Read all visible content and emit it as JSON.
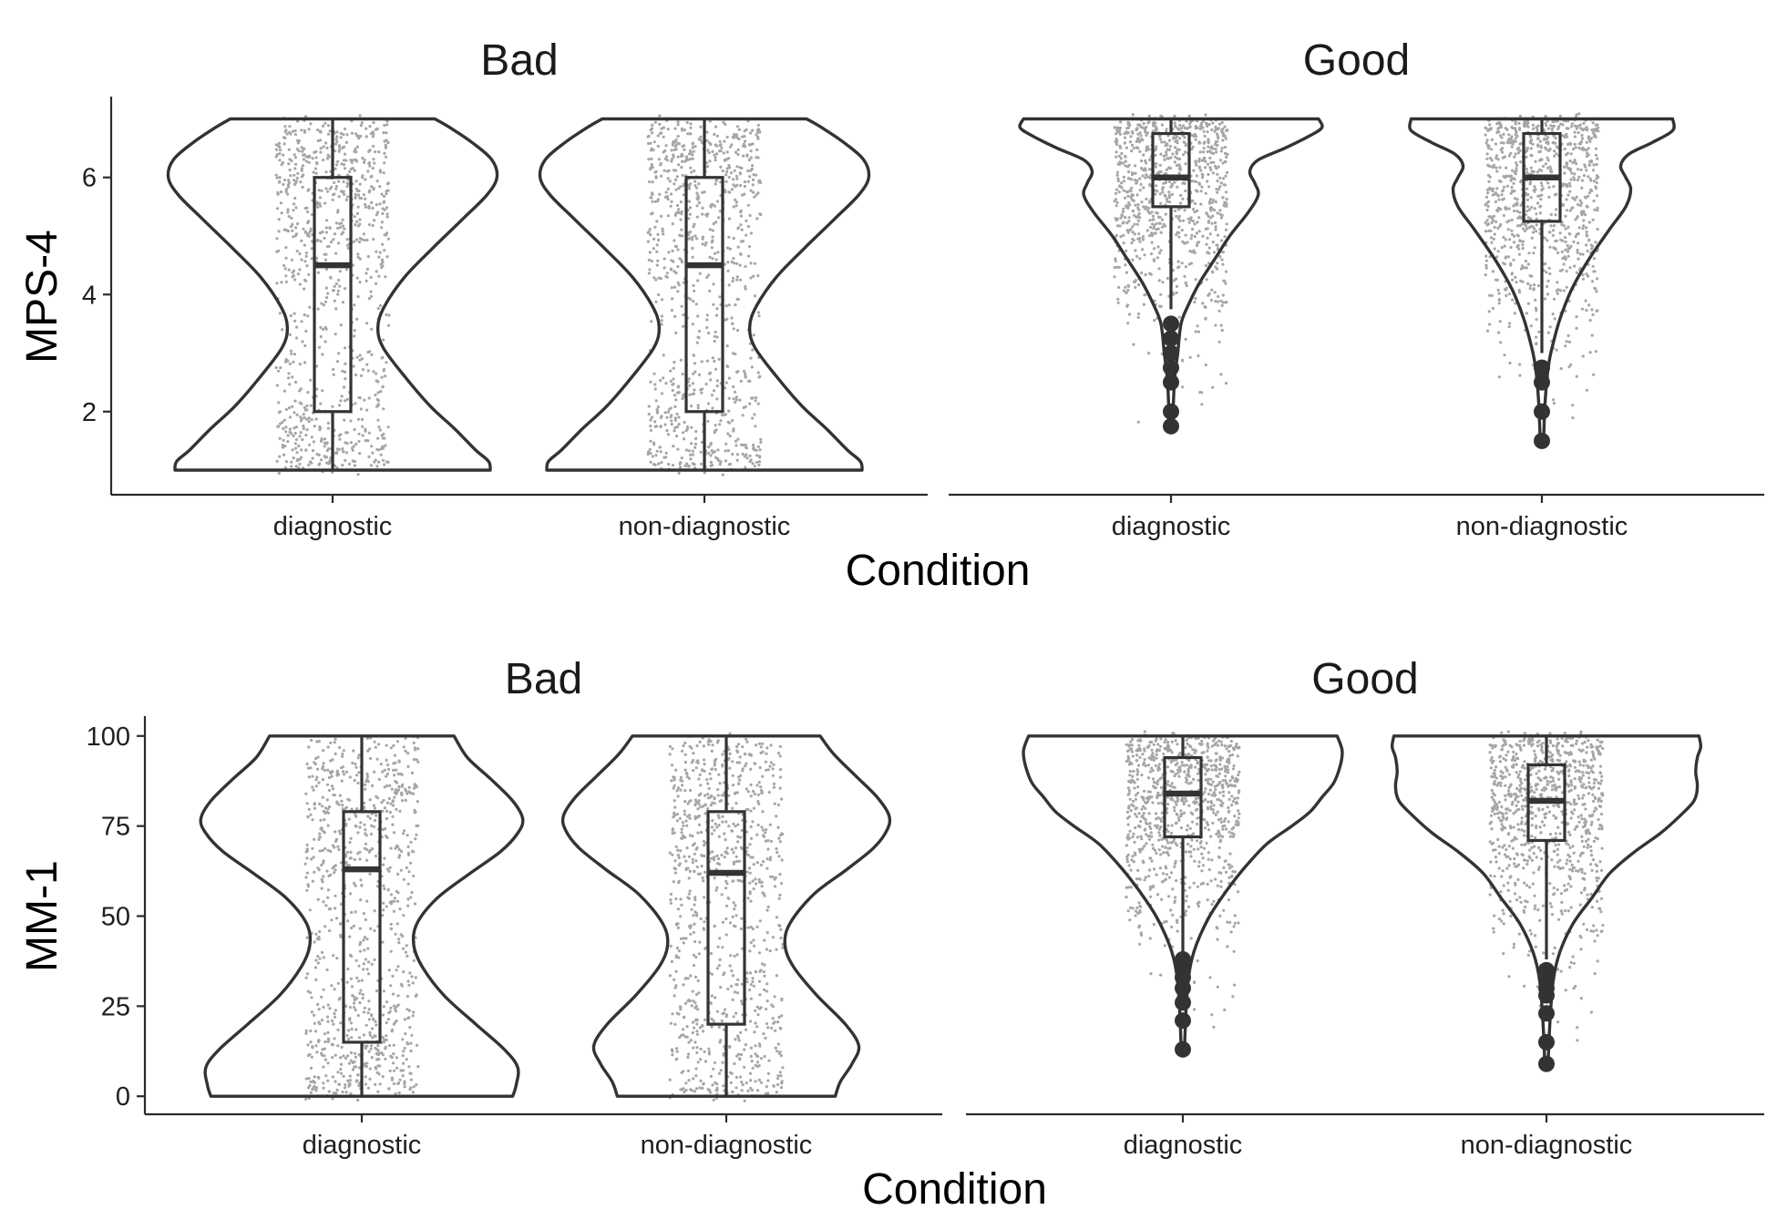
{
  "chart_data": [
    {
      "type": "violin",
      "ylabel": "MPS-4",
      "xlabel": "Condition",
      "ylim": [
        0.58,
        7.35
      ],
      "yticks": [
        2,
        4,
        6
      ],
      "facets": [
        {
          "title": "Bad",
          "groups": [
            {
              "category": "diagnostic",
              "min": 1,
              "max": 7,
              "box": {
                "q1": 2,
                "median": 4.5,
                "q3": 6,
                "whisker_low": 1,
                "whisker_high": 7
              },
              "outliers": [],
              "density": [
                [
                  1,
                  0.94
                ],
                [
                  1.15,
                  0.93
                ],
                [
                  1.35,
                  0.85
                ],
                [
                  1.7,
                  0.73
                ],
                [
                  2.1,
                  0.58
                ],
                [
                  2.6,
                  0.43
                ],
                [
                  3.1,
                  0.3
                ],
                [
                  3.45,
                  0.27
                ],
                [
                  3.8,
                  0.31
                ],
                [
                  4.3,
                  0.43
                ],
                [
                  4.8,
                  0.6
                ],
                [
                  5.3,
                  0.78
                ],
                [
                  5.7,
                  0.92
                ],
                [
                  6,
                  0.98
                ],
                [
                  6.3,
                  0.95
                ],
                [
                  6.6,
                  0.83
                ],
                [
                  6.85,
                  0.7
                ],
                [
                  7,
                  0.61
                ]
              ]
            },
            {
              "category": "non-diagnostic",
              "min": 1,
              "max": 7,
              "box": {
                "q1": 2,
                "median": 4.5,
                "q3": 6,
                "whisker_low": 1,
                "whisker_high": 7
              },
              "outliers": [],
              "density": [
                [
                  1,
                  0.94
                ],
                [
                  1.15,
                  0.93
                ],
                [
                  1.35,
                  0.85
                ],
                [
                  1.7,
                  0.73
                ],
                [
                  2.1,
                  0.58
                ],
                [
                  2.6,
                  0.43
                ],
                [
                  3.1,
                  0.3
                ],
                [
                  3.45,
                  0.27
                ],
                [
                  3.8,
                  0.31
                ],
                [
                  4.3,
                  0.43
                ],
                [
                  4.8,
                  0.6
                ],
                [
                  5.3,
                  0.78
                ],
                [
                  5.7,
                  0.92
                ],
                [
                  6,
                  0.98
                ],
                [
                  6.3,
                  0.95
                ],
                [
                  6.6,
                  0.83
                ],
                [
                  6.85,
                  0.7
                ],
                [
                  7,
                  0.61
                ]
              ]
            }
          ]
        },
        {
          "title": "Good",
          "groups": [
            {
              "category": "diagnostic",
              "min": 1.75,
              "max": 7,
              "box": {
                "q1": 5.5,
                "median": 6,
                "q3": 6.75,
                "whisker_low": 3.75,
                "whisker_high": 7
              },
              "outliers": [
                3.5,
                3.25,
                3.0,
                2.75,
                2.5,
                2.0,
                1.75
              ],
              "density": [
                [
                  1.75,
                  0.01
                ],
                [
                  2.5,
                  0.02
                ],
                [
                  3,
                  0.04
                ],
                [
                  3.5,
                  0.06
                ],
                [
                  3.8,
                  0.1
                ],
                [
                  4.2,
                  0.17
                ],
                [
                  4.6,
                  0.26
                ],
                [
                  5,
                  0.35
                ],
                [
                  5.4,
                  0.46
                ],
                [
                  5.7,
                  0.52
                ],
                [
                  5.9,
                  0.5
                ],
                [
                  6.1,
                  0.47
                ],
                [
                  6.3,
                  0.52
                ],
                [
                  6.5,
                  0.68
                ],
                [
                  6.7,
                  0.82
                ],
                [
                  6.85,
                  0.9
                ],
                [
                  7,
                  0.88
                ]
              ]
            },
            {
              "category": "non-diagnostic",
              "min": 1.5,
              "max": 7,
              "box": {
                "q1": 5.25,
                "median": 6,
                "q3": 6.75,
                "whisker_low": 3,
                "whisker_high": 7
              },
              "outliers": [
                2.75,
                2.5,
                2.0,
                1.5
              ],
              "density": [
                [
                  1.5,
                  0.01
                ],
                [
                  2.2,
                  0.02
                ],
                [
                  2.8,
                  0.04
                ],
                [
                  3.2,
                  0.07
                ],
                [
                  3.6,
                  0.11
                ],
                [
                  4.1,
                  0.18
                ],
                [
                  4.6,
                  0.28
                ],
                [
                  5.1,
                  0.4
                ],
                [
                  5.5,
                  0.5
                ],
                [
                  5.8,
                  0.53
                ],
                [
                  6,
                  0.5
                ],
                [
                  6.2,
                  0.47
                ],
                [
                  6.4,
                  0.52
                ],
                [
                  6.6,
                  0.66
                ],
                [
                  6.8,
                  0.78
                ],
                [
                  7,
                  0.78
                ]
              ]
            }
          ]
        }
      ]
    },
    {
      "type": "violin",
      "ylabel": "MM-1",
      "xlabel": "Condition",
      "ylim": [
        -5,
        105
      ],
      "yticks": [
        0,
        25,
        50,
        75,
        100
      ],
      "facets": [
        {
          "title": "Bad",
          "groups": [
            {
              "category": "diagnostic",
              "min": 0,
              "max": 100,
              "box": {
                "q1": 15,
                "median": 63,
                "q3": 79,
                "whisker_low": 0,
                "whisker_high": 100
              },
              "outliers": [],
              "density": [
                [
                  0,
                  0.9
                ],
                [
                  3,
                  0.92
                ],
                [
                  8,
                  0.93
                ],
                [
                  13,
                  0.85
                ],
                [
                  20,
                  0.68
                ],
                [
                  28,
                  0.49
                ],
                [
                  36,
                  0.36
                ],
                [
                  42,
                  0.31
                ],
                [
                  48,
                  0.33
                ],
                [
                  55,
                  0.45
                ],
                [
                  62,
                  0.65
                ],
                [
                  68,
                  0.83
                ],
                [
                  73,
                  0.93
                ],
                [
                  77,
                  0.96
                ],
                [
                  82,
                  0.9
                ],
                [
                  88,
                  0.77
                ],
                [
                  94,
                  0.63
                ],
                [
                  100,
                  0.55
                ]
              ]
            },
            {
              "category": "non-diagnostic",
              "min": 0,
              "max": 100,
              "box": {
                "q1": 20,
                "median": 62,
                "q3": 79,
                "whisker_low": 0,
                "whisker_high": 100
              },
              "outliers": [],
              "density": [
                [
                  0,
                  0.65
                ],
                [
                  4,
                  0.68
                ],
                [
                  9,
                  0.75
                ],
                [
                  14,
                  0.79
                ],
                [
                  20,
                  0.71
                ],
                [
                  28,
                  0.54
                ],
                [
                  36,
                  0.4
                ],
                [
                  42,
                  0.35
                ],
                [
                  48,
                  0.38
                ],
                [
                  56,
                  0.52
                ],
                [
                  63,
                  0.72
                ],
                [
                  69,
                  0.88
                ],
                [
                  74,
                  0.96
                ],
                [
                  78,
                  0.97
                ],
                [
                  83,
                  0.9
                ],
                [
                  89,
                  0.77
                ],
                [
                  95,
                  0.64
                ],
                [
                  100,
                  0.56
                ]
              ]
            }
          ]
        },
        {
          "title": "Good",
          "groups": [
            {
              "category": "diagnostic",
              "min": 13,
              "max": 100,
              "box": {
                "q1": 72,
                "median": 84,
                "q3": 94,
                "whisker_low": 40,
                "whisker_high": 100
              },
              "outliers": [
                38,
                36,
                33,
                30,
                26,
                21,
                13
              ],
              "density": [
                [
                  13,
                  0.01
                ],
                [
                  25,
                  0.02
                ],
                [
                  35,
                  0.04
                ],
                [
                  42,
                  0.08
                ],
                [
                  50,
                  0.16
                ],
                [
                  57,
                  0.26
                ],
                [
                  63,
                  0.36
                ],
                [
                  70,
                  0.5
                ],
                [
                  75,
                  0.65
                ],
                [
                  79,
                  0.76
                ],
                [
                  83,
                  0.83
                ],
                [
                  87,
                  0.9
                ],
                [
                  92,
                  0.94
                ],
                [
                  96,
                  0.95
                ],
                [
                  100,
                  0.92
                ]
              ]
            },
            {
              "category": "non-diagnostic",
              "min": 9,
              "max": 100,
              "box": {
                "q1": 71,
                "median": 82,
                "q3": 92,
                "whisker_low": 38,
                "whisker_high": 100
              },
              "outliers": [
                35,
                33,
                30,
                28,
                23,
                15,
                9
              ],
              "density": [
                [
                  9,
                  0.01
                ],
                [
                  20,
                  0.02
                ],
                [
                  32,
                  0.04
                ],
                [
                  40,
                  0.08
                ],
                [
                  48,
                  0.16
                ],
                [
                  55,
                  0.27
                ],
                [
                  62,
                  0.38
                ],
                [
                  68,
                  0.53
                ],
                [
                  73,
                  0.68
                ],
                [
                  78,
                  0.8
                ],
                [
                  82,
                  0.88
                ],
                [
                  86,
                  0.9
                ],
                [
                  90,
                  0.89
                ],
                [
                  94,
                  0.9
                ],
                [
                  97,
                  0.92
                ],
                [
                  100,
                  0.91
                ]
              ]
            }
          ]
        }
      ]
    }
  ]
}
